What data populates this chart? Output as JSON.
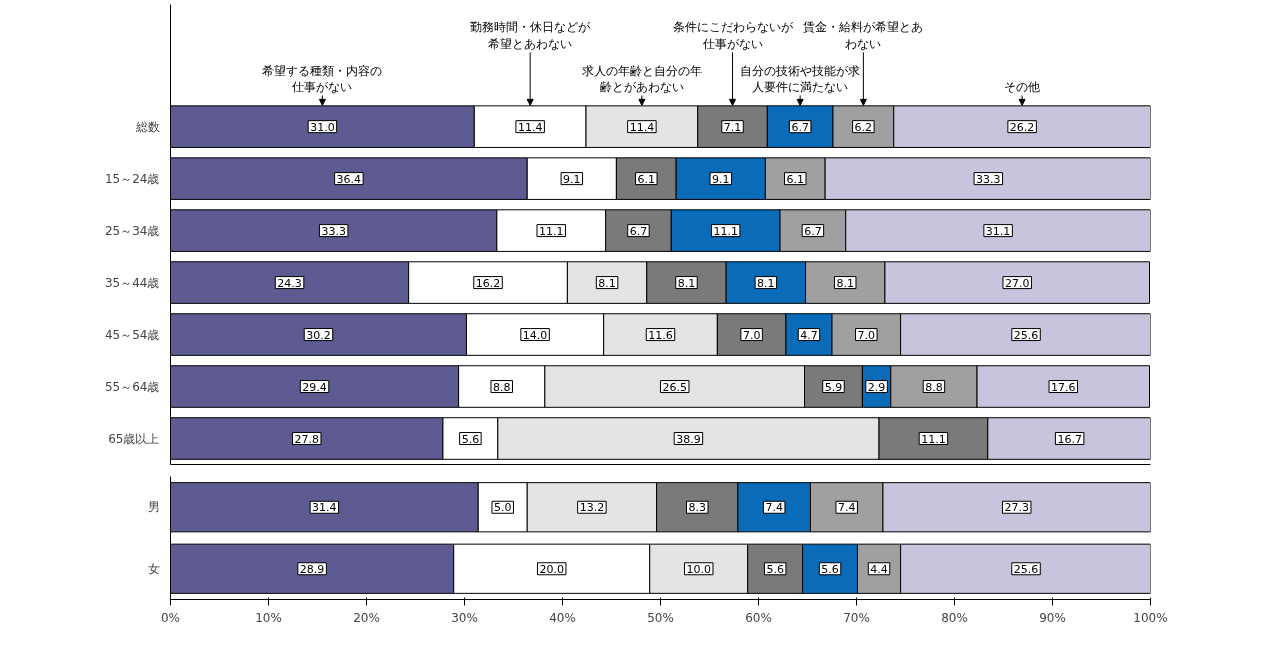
{
  "chart_data": [
    {
      "type": "bar",
      "orientation": "horizontal",
      "stacked": true,
      "grid": false,
      "tick_labels": "y",
      "categories": [
        "総数",
        "15～24歳",
        "25～34歳",
        "35～44歳",
        "45～54歳",
        "55～64歳",
        "65歳以上"
      ],
      "xlim": [
        0,
        100
      ],
      "series": [
        {
          "name": "希望する種類・内容の仕事がない",
          "color": "#5e5b92",
          "values": [
            31.0,
            36.4,
            33.3,
            24.3,
            30.2,
            29.4,
            27.8
          ],
          "value_labels": [
            "31.0",
            "36.4",
            "33.3",
            "24.3",
            "30.2",
            "29.4",
            "27.8"
          ]
        },
        {
          "name": "勤務時間・休日などが希望とあわない",
          "color": "#ffffff",
          "values": [
            11.4,
            9.1,
            11.1,
            16.2,
            14.0,
            8.8,
            5.6
          ],
          "value_labels": [
            "11.4",
            "9.1",
            "11.1",
            "16.2",
            "14.0",
            "8.8",
            "5.6"
          ]
        },
        {
          "name": "求人の年齢と自分の年齢とがあわない",
          "color": "#e4e4e4",
          "values": [
            11.4,
            null,
            null,
            8.1,
            11.6,
            26.5,
            38.9
          ],
          "value_labels": [
            "11.4",
            null,
            null,
            "8.1",
            "11.6",
            "26.5",
            "38.9"
          ]
        },
        {
          "name": "条件にこだわらないが仕事がない",
          "color": "#7a7a7a",
          "values": [
            7.1,
            6.1,
            6.7,
            8.1,
            7.0,
            5.9,
            11.1
          ],
          "value_labels": [
            "7.1",
            "6.1",
            "6.7",
            "8.1",
            "7.0",
            "5.9",
            "11.1"
          ]
        },
        {
          "name": "自分の技術や技能が求人要件に満たない",
          "color": "#0a6cb8",
          "values": [
            6.7,
            9.1,
            11.1,
            8.1,
            4.7,
            2.9,
            null
          ],
          "value_labels": [
            "6.7",
            "9.1",
            "11.1",
            "8.1",
            "4.7",
            "2.9",
            null
          ]
        },
        {
          "name": "賃金・給料が希望とあわない",
          "color": "#a0a0a0",
          "values": [
            6.2,
            6.1,
            6.7,
            8.1,
            7.0,
            8.8,
            null
          ],
          "value_labels": [
            "6.2",
            "6.1",
            "6.7",
            "8.1",
            "7.0",
            "8.8",
            null
          ]
        },
        {
          "name": "その他",
          "color": "#cac3dd",
          "values": [
            26.2,
            33.3,
            31.1,
            27.0,
            25.6,
            17.6,
            16.7
          ],
          "value_labels": [
            "26.2",
            "33.3",
            "31.1",
            "27.0",
            "25.6",
            "17.6",
            "16.7"
          ]
        }
      ]
    },
    {
      "type": "bar",
      "orientation": "horizontal",
      "stacked": true,
      "grid": false,
      "categories": [
        "男",
        "女"
      ],
      "xlim": [
        0,
        100
      ],
      "xticks": [
        {
          "value": 0,
          "label": "0%"
        },
        {
          "value": 10,
          "label": "10%"
        },
        {
          "value": 20,
          "label": "20%"
        },
        {
          "value": 30,
          "label": "30%"
        },
        {
          "value": 40,
          "label": "40%"
        },
        {
          "value": 50,
          "label": "50%"
        },
        {
          "value": 60,
          "label": "60%"
        },
        {
          "value": 70,
          "label": "70%"
        },
        {
          "value": 80,
          "label": "80%"
        },
        {
          "value": 90,
          "label": "90%"
        },
        {
          "value": 100,
          "label": "100%"
        }
      ],
      "series": [
        {
          "color": "#5e5b92",
          "values": [
            31.4,
            28.9
          ],
          "value_labels": [
            "31.4",
            "28.9"
          ]
        },
        {
          "color": "#ffffff",
          "values": [
            5.0,
            20.0
          ],
          "value_labels": [
            "5.0",
            "20.0"
          ]
        },
        {
          "color": "#e4e4e4",
          "values": [
            13.2,
            10.0
          ],
          "value_labels": [
            "13.2",
            "10.0"
          ]
        },
        {
          "color": "#7a7a7a",
          "values": [
            8.3,
            5.6
          ],
          "value_labels": [
            "8.3",
            "5.6"
          ]
        },
        {
          "color": "#0a6cb8",
          "values": [
            7.4,
            5.6
          ],
          "value_labels": [
            "7.4",
            "5.6"
          ]
        },
        {
          "color": "#a0a0a0",
          "values": [
            7.4,
            4.4
          ],
          "value_labels": [
            "7.4",
            "4.4"
          ]
        },
        {
          "color": "#cac3dd",
          "values": [
            27.3,
            25.6
          ],
          "value_labels": [
            "27.3",
            "25.6"
          ]
        }
      ]
    }
  ]
}
